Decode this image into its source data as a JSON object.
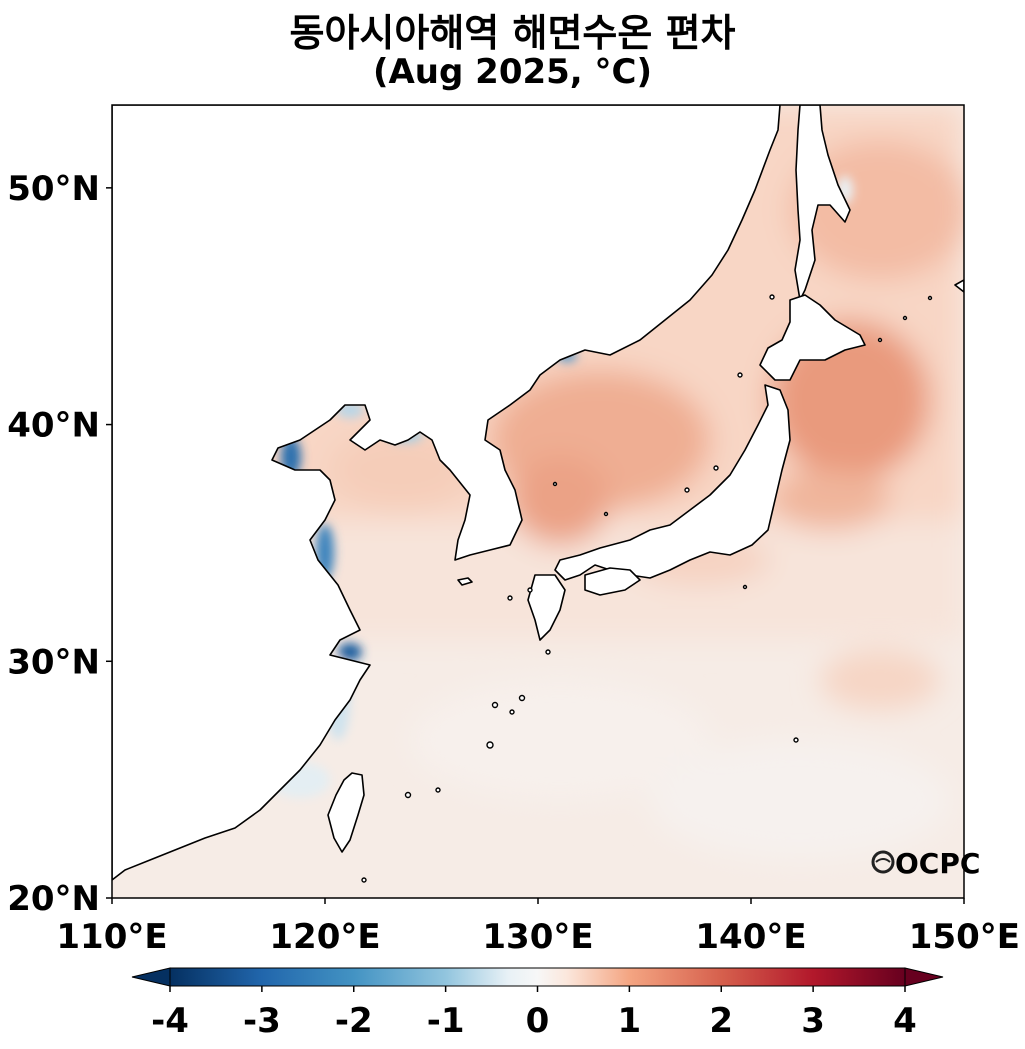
{
  "title": {
    "line1": "동아시아해역 해면수온 편차",
    "line2": "(Aug 2025, °C)"
  },
  "map": {
    "lon_range": [
      110,
      150
    ],
    "lat_range": [
      20,
      53.5
    ],
    "x_ticks": [
      "110°E",
      "120°E",
      "130°E",
      "140°E",
      "150°E"
    ],
    "y_ticks": [
      "20°N",
      "30°N",
      "40°N",
      "50°N"
    ],
    "land_color": "#ffffff",
    "coastline_color": "#000000"
  },
  "colorbar": {
    "min": -4,
    "max": 4,
    "ticks": [
      "-4",
      "-3",
      "-2",
      "-1",
      "0",
      "1",
      "2",
      "3",
      "4"
    ],
    "extend": "both",
    "colormap": "RdBu_r",
    "colors": {
      "cold_end": "#053061",
      "neutral": "#f7f7f7",
      "warm_end": "#67001f"
    }
  },
  "logo": {
    "text": "OCPC"
  }
}
